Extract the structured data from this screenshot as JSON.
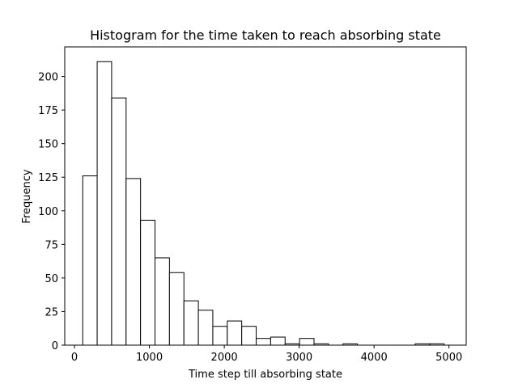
{
  "chart_data": {
    "type": "bar",
    "subtype": "histogram",
    "title": "Histogram for the time taken to reach absorbing state",
    "xlabel": "Time step till absorbing state",
    "ylabel": "Frequency",
    "xlim": [
      -130,
      5230
    ],
    "ylim": [
      0,
      222
    ],
    "xticks": [
      0,
      1000,
      2000,
      3000,
      4000,
      5000
    ],
    "yticks": [
      0,
      25,
      50,
      75,
      100,
      125,
      150,
      175,
      200
    ],
    "grid": false,
    "legend": "none",
    "bar_fill": "#ffffff",
    "bar_edge": "#000000",
    "bins": [
      {
        "x0": 110,
        "x1": 303,
        "value": 126
      },
      {
        "x0": 303,
        "x1": 496,
        "value": 211
      },
      {
        "x0": 496,
        "x1": 689,
        "value": 184
      },
      {
        "x0": 689,
        "x1": 882,
        "value": 124
      },
      {
        "x0": 882,
        "x1": 1075,
        "value": 93
      },
      {
        "x0": 1075,
        "x1": 1268,
        "value": 65
      },
      {
        "x0": 1268,
        "x1": 1461,
        "value": 54
      },
      {
        "x0": 1461,
        "x1": 1654,
        "value": 33
      },
      {
        "x0": 1654,
        "x1": 1847,
        "value": 26
      },
      {
        "x0": 1847,
        "x1": 2040,
        "value": 14
      },
      {
        "x0": 2040,
        "x1": 2233,
        "value": 18
      },
      {
        "x0": 2233,
        "x1": 2426,
        "value": 14
      },
      {
        "x0": 2426,
        "x1": 2619,
        "value": 5
      },
      {
        "x0": 2619,
        "x1": 2812,
        "value": 6
      },
      {
        "x0": 2812,
        "x1": 3005,
        "value": 1
      },
      {
        "x0": 3005,
        "x1": 3198,
        "value": 5
      },
      {
        "x0": 3198,
        "x1": 3391,
        "value": 1
      },
      {
        "x0": 3391,
        "x1": 3584,
        "value": 0
      },
      {
        "x0": 3584,
        "x1": 3777,
        "value": 1
      },
      {
        "x0": 3777,
        "x1": 3970,
        "value": 0
      },
      {
        "x0": 3970,
        "x1": 4163,
        "value": 0
      },
      {
        "x0": 4163,
        "x1": 4356,
        "value": 0
      },
      {
        "x0": 4356,
        "x1": 4549,
        "value": 0
      },
      {
        "x0": 4549,
        "x1": 4742,
        "value": 1
      },
      {
        "x0": 4742,
        "x1": 4935,
        "value": 1
      }
    ]
  }
}
